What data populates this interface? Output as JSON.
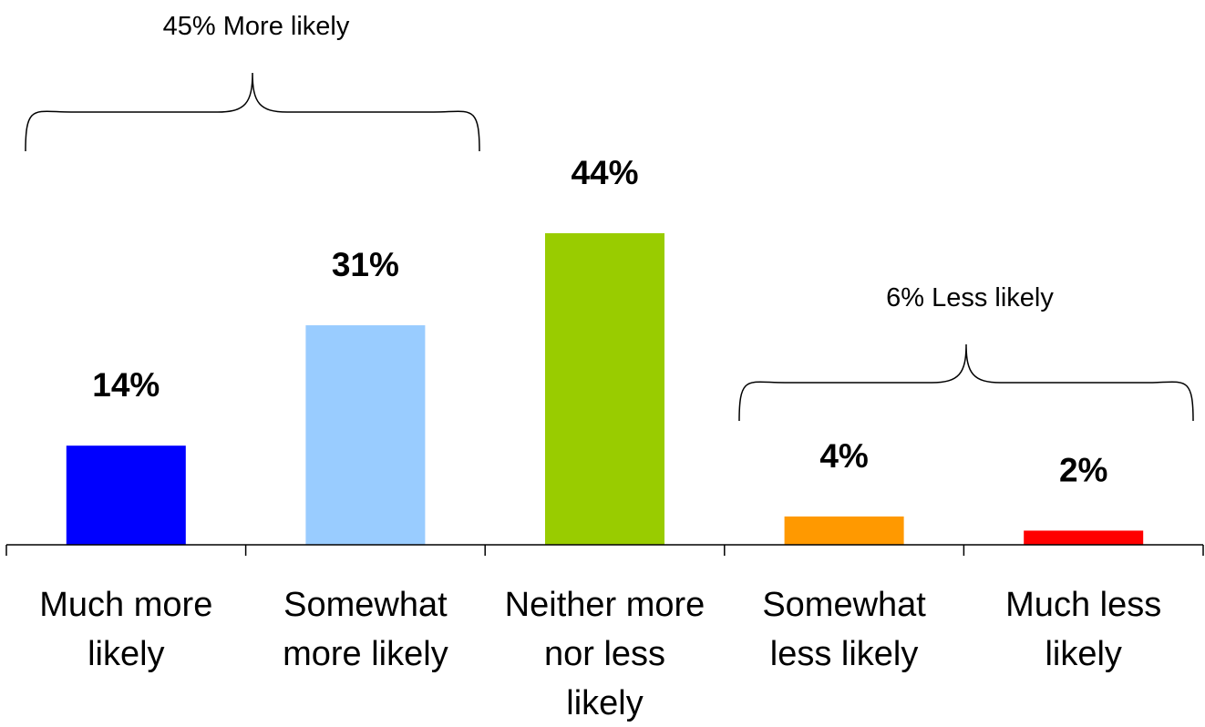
{
  "chart_data": {
    "type": "bar",
    "categories": [
      [
        "Much more",
        "likely"
      ],
      [
        "Somewhat",
        "more likely"
      ],
      [
        "Neither more",
        "nor less",
        "likely"
      ],
      [
        "Somewhat",
        "less likely"
      ],
      [
        "Much less",
        "likely"
      ]
    ],
    "values": [
      14,
      31,
      44,
      4,
      2
    ],
    "value_labels": [
      "14%",
      "31%",
      "44%",
      "4%",
      "2%"
    ],
    "colors": [
      "#0000ff",
      "#99ccff",
      "#99cc00",
      "#ff9900",
      "#ff0000"
    ],
    "ylim": [
      0,
      44
    ],
    "grid": false,
    "annotations": [
      {
        "text": "45% More likely",
        "spans": [
          0,
          1
        ]
      },
      {
        "text": "6% Less likely",
        "spans": [
          3,
          4
        ]
      }
    ]
  }
}
